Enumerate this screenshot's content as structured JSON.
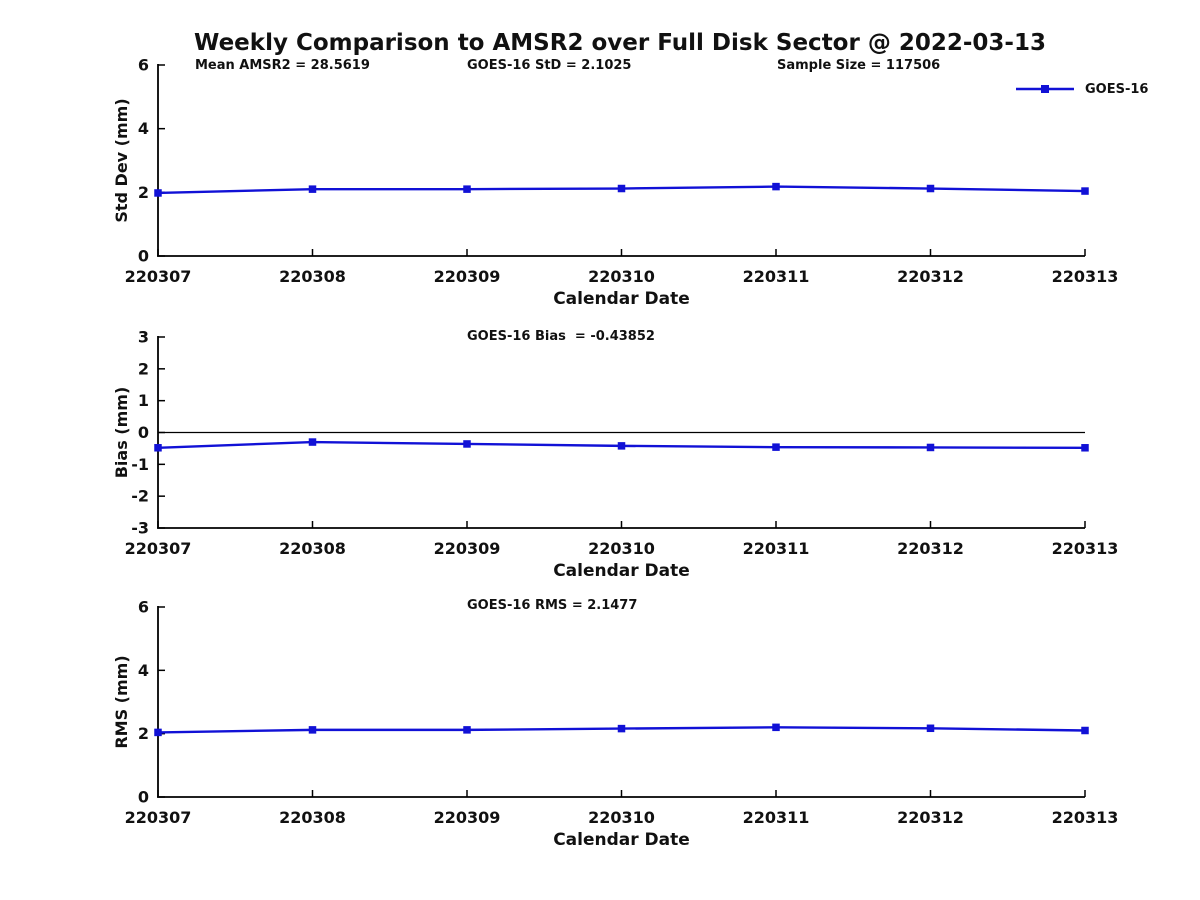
{
  "figure": {
    "title": "Weekly Comparison to AMSR2 over Full Disk Sector @ 2022-03-13",
    "background": "#ffffff",
    "line_color": "#1111d6",
    "axis_color": "#000000",
    "text_color": "#111111"
  },
  "legend": {
    "label": "GOES-16",
    "marker": "square",
    "position": "top-right"
  },
  "chart_data": [
    {
      "type": "line",
      "name": "std_dev",
      "annotations": [
        "Mean AMSR2 = 28.5619",
        "GOES-16 StD = 2.1025",
        "Sample Size = 117506"
      ],
      "categories": [
        "220307",
        "220308",
        "220309",
        "220310",
        "220311",
        "220312",
        "220313"
      ],
      "series": [
        {
          "name": "GOES-16",
          "values": [
            1.98,
            2.1,
            2.1,
            2.12,
            2.18,
            2.12,
            2.04
          ]
        }
      ],
      "xlabel": "Calendar Date",
      "ylabel": "Std Dev (mm)",
      "ylim": [
        0,
        6
      ],
      "yticks": [
        0,
        2,
        4,
        6
      ],
      "grid": false,
      "zero_line": false,
      "marker": "square"
    },
    {
      "type": "line",
      "name": "bias",
      "annotations": [
        "GOES-16 Bias  = -0.43852"
      ],
      "categories": [
        "220307",
        "220308",
        "220309",
        "220310",
        "220311",
        "220312",
        "220313"
      ],
      "series": [
        {
          "name": "GOES-16",
          "values": [
            -0.48,
            -0.3,
            -0.36,
            -0.42,
            -0.46,
            -0.47,
            -0.48
          ]
        }
      ],
      "xlabel": "Calendar Date",
      "ylabel": "Bias (mm)",
      "ylim": [
        -3,
        3
      ],
      "yticks": [
        3,
        2,
        1,
        0,
        -1,
        -2,
        -3
      ],
      "grid": false,
      "zero_line": true,
      "marker": "square"
    },
    {
      "type": "line",
      "name": "rms",
      "annotations": [
        "GOES-16 RMS = 2.1477"
      ],
      "categories": [
        "220307",
        "220308",
        "220309",
        "220310",
        "220311",
        "220312",
        "220313"
      ],
      "series": [
        {
          "name": "GOES-16",
          "values": [
            2.04,
            2.12,
            2.12,
            2.16,
            2.2,
            2.17,
            2.1
          ]
        }
      ],
      "xlabel": "Calendar Date",
      "ylabel": "RMS (mm)",
      "ylim": [
        0,
        6
      ],
      "yticks": [
        0,
        2,
        4,
        6
      ],
      "grid": false,
      "zero_line": false,
      "marker": "square"
    }
  ]
}
